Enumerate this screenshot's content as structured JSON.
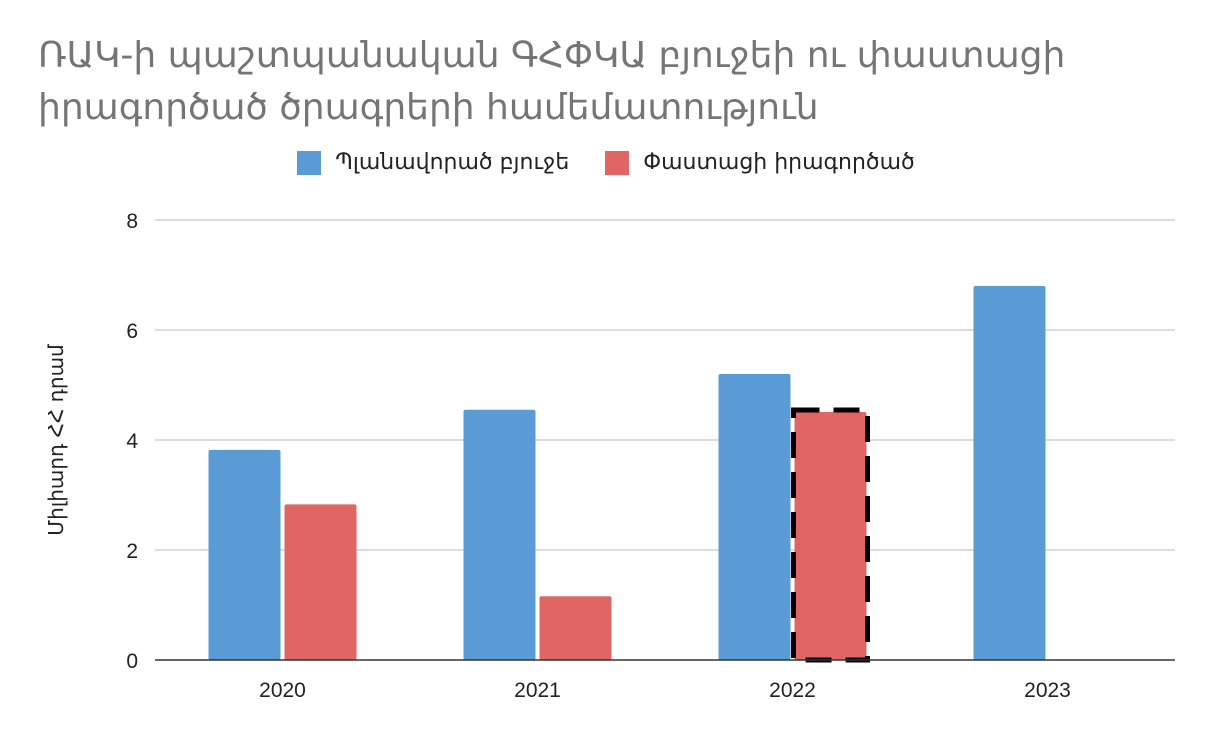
{
  "chart_data": {
    "type": "bar",
    "title": "ՌԱԿ-ի պաշտպանական ԳՀՓԿԱ բյուջեի ու փաստացի իրագործած ծրագրերի համեմատություն",
    "ylabel": "Միլիարդ ՀՀ դրամ",
    "xlabel": "",
    "categories": [
      "2020",
      "2021",
      "2022",
      "2023"
    ],
    "series": [
      {
        "name": "Պլանավորած բյուջե",
        "color": "#5b9bd5",
        "values": [
          3.82,
          4.55,
          5.2,
          6.8
        ]
      },
      {
        "name": "Փաստացի իրագործած",
        "color": "#e06666",
        "values": [
          2.83,
          1.16,
          4.51,
          null
        ]
      }
    ],
    "ylim": [
      0,
      8
    ],
    "yticks": [
      "0",
      "2",
      "4",
      "6",
      "8"
    ],
    "grid": true,
    "legend": "top",
    "highlight": {
      "series": 1,
      "category": "2022",
      "style": "dashed-outline"
    }
  }
}
